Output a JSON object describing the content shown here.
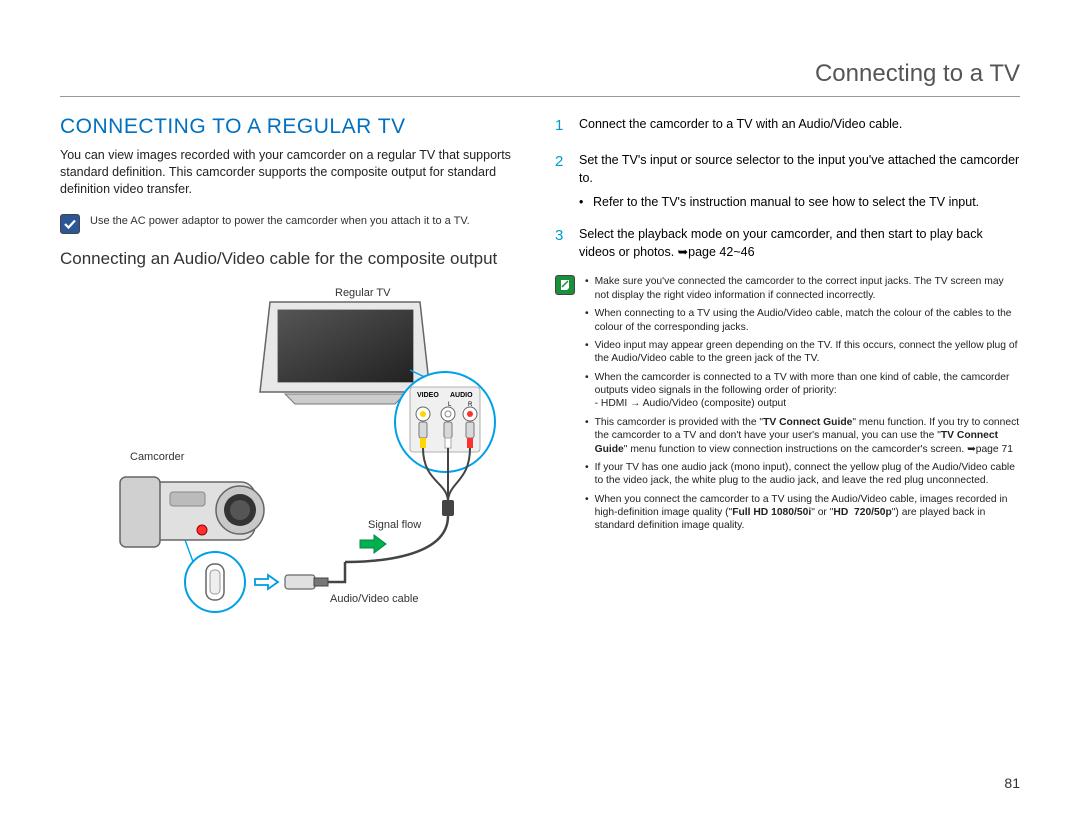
{
  "header": {
    "title": "Connecting to a TV"
  },
  "main_heading": "CONNECTING TO A REGULAR TV",
  "intro": "You can view images recorded with your camcorder on a regular TV that supports standard definition. This camcorder supports the composite output for standard definition video transfer.",
  "info_box": {
    "text": "Use the AC power adaptor to power the camcorder when you attach it to a TV."
  },
  "sub_heading": "Connecting an Audio/Video cable for the composite output",
  "diagram": {
    "tv_label": "Regular TV",
    "camcorder_label": "Camcorder",
    "signal_flow_label": "Signal flow",
    "cable_label": "Audio/Video cable",
    "jack_panel": {
      "video": "VIDEO",
      "audio": "AUDIO",
      "l": "L",
      "r": "R"
    },
    "colors": {
      "callout_stroke": "#00a0e9",
      "arrow_fill": "#00b050",
      "body_gray": "#bfbfbf",
      "dark_gray": "#555555",
      "yellow": "#ffd700",
      "white": "#ffffff",
      "red": "#ff3030"
    }
  },
  "steps": [
    {
      "num": "1",
      "text": "Connect the camcorder to a TV with an Audio/Video cable."
    },
    {
      "num": "2",
      "text": "Set the TV's input or source selector to the input you've attached the camcorder to.",
      "sub": "Refer to the TV's instruction manual to see how to select the TV input."
    },
    {
      "num": "3",
      "text": "Select the playback mode on your camcorder, and then start to play back videos or photos. ➥page 42~46"
    }
  ],
  "notes": [
    "Make sure you've connected the camcorder to the correct input jacks. The TV screen may not display the right video information if connected incorrectly.",
    "When connecting to a TV using the Audio/Video cable, match the colour of the cables to the colour of the corresponding jacks.",
    "Video input may appear green depending on the TV.  If this occurs, connect the yellow plug of the Audio/Video cable to the green jack of the TV.",
    "When the camcorder is connected to a TV with more than one kind of cable, the camcorder outputs video signals in the following order of priority:\n- HDMI → Audio/Video (composite) output",
    "This camcorder is provided with the \"TV Connect Guide\" menu function. If you try to connect the camcorder to a TV and don't have your user's manual, you can use the \"TV Connect Guide\" menu function to view connection instructions on the camcorder's screen. ➥page 71",
    "If your TV has one audio jack (mono input), connect the yellow plug of the Audio/Video cable to the video jack, the white plug to the audio jack, and leave the red plug unconnected.",
    "When you connect the camcorder to a TV using the Audio/Video cable, images recorded in high-definition image quality (\"Full HD 1080/50i\" or \"HD  720/50p\") are played back in standard definition image quality."
  ],
  "page_number": "81"
}
